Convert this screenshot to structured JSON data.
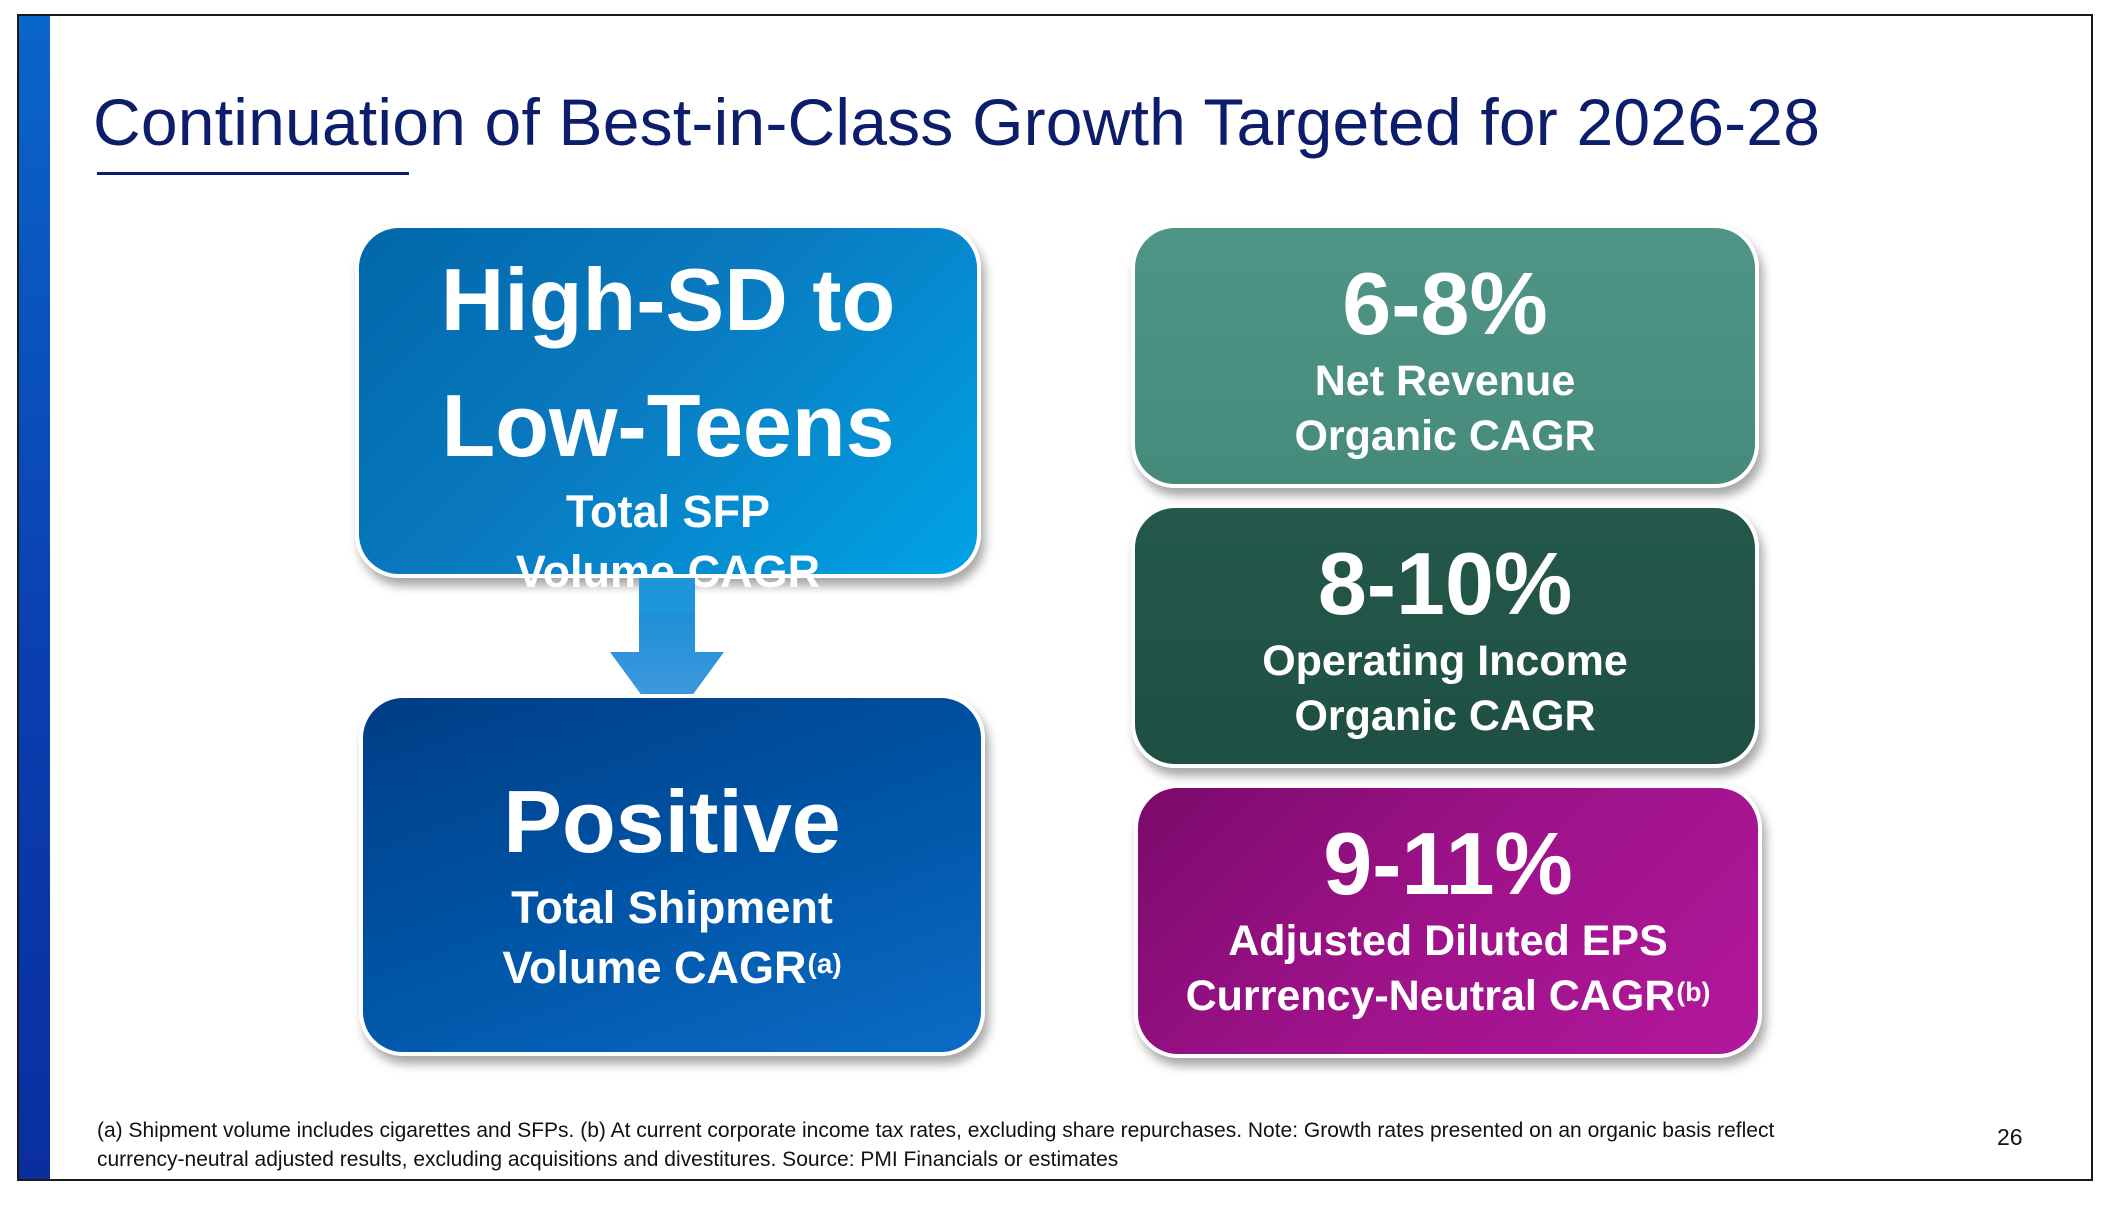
{
  "slide": {
    "title": "Continuation of Best-in-Class Growth Targeted for 2026-28",
    "page_number": "26"
  },
  "boxes": {
    "sfp_volume": {
      "line1": "High-SD to",
      "line2": "Low-Teens",
      "sub1": "Total SFP",
      "sub2": "Volume CAGR",
      "color": "#0a7ac0"
    },
    "shipment_volume": {
      "value": "Positive",
      "sub1": "Total Shipment",
      "sub2": "Volume CAGR",
      "note": "(a)",
      "color": "#0054a5"
    },
    "net_revenue": {
      "value": "6-8%",
      "sub1": "Net Revenue",
      "sub2": "Organic CAGR",
      "color": "#4a8f80"
    },
    "operating_income": {
      "value": "8-10%",
      "sub1": "Operating Income",
      "sub2": "Organic CAGR",
      "color": "#22554a"
    },
    "eps": {
      "value": "9-11%",
      "sub1": "Adjusted Diluted EPS",
      "sub2": "Currency-Neutral CAGR",
      "note": "(b)",
      "color": "#9c1288"
    }
  },
  "footnote": {
    "line1": "(a) Shipment volume includes cigarettes and SFPs. (b) At current corporate income tax rates, excluding share repurchases. Note: Growth rates presented on an organic basis reflect",
    "line2": "currency-neutral adjusted results, excluding acquisitions and divestitures. Source: PMI Financials or estimates"
  },
  "icons": {
    "connector": "down-arrow-icon"
  },
  "colors": {
    "title": "#0b1d6b",
    "accent_bar": "#0b3fb0"
  }
}
